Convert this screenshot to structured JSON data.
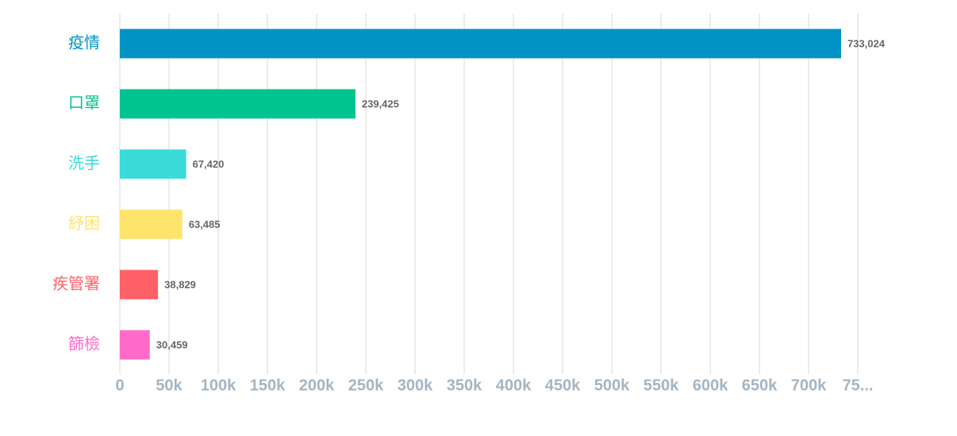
{
  "chart_data": {
    "type": "hbar",
    "categories": [
      "疫情",
      "口罩",
      "洗手",
      "紓困",
      "疾管署",
      "篩檢"
    ],
    "values": [
      733024,
      239425,
      67420,
      63485,
      38829,
      30459
    ],
    "value_labels": [
      "733,024",
      "239,425",
      "67,420",
      "63,485",
      "38,829",
      "30,459"
    ],
    "colors": [
      "#0093c4",
      "#00c48f",
      "#3adbd9",
      "#fee46a",
      "#ff6168",
      "#ff6ac9"
    ],
    "xlim": [
      0,
      750000
    ],
    "xticks": [
      0,
      {
        "value": 50000,
        "label": "50k"
      },
      {
        "value": 100000,
        "label": "100k"
      },
      {
        "value": 150000,
        "label": "150k"
      },
      {
        "value": 200000,
        "label": "200k"
      },
      {
        "value": 250000,
        "label": "250k"
      },
      {
        "value": 300000,
        "label": "300k"
      },
      {
        "value": 350000,
        "label": "350k"
      },
      {
        "value": 400000,
        "label": "400k"
      },
      {
        "value": 450000,
        "label": "450k"
      },
      {
        "value": 500000,
        "label": "500k"
      },
      {
        "value": 550000,
        "label": "550k"
      },
      {
        "value": 600000,
        "label": "600k"
      },
      {
        "value": 650000,
        "label": "650k"
      },
      {
        "value": 700000,
        "label": "700k"
      },
      {
        "value": 750000,
        "label": "75..."
      }
    ],
    "grid": true
  }
}
